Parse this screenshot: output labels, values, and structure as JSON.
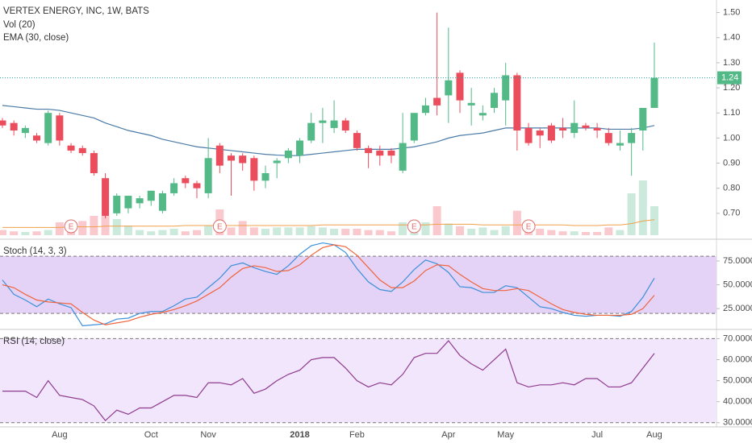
{
  "chart_data": [
    {
      "type": "candlestick",
      "title": "VERTEX ENERGY, INC, 1W, BATS",
      "up_color": "#53b987",
      "down_color": "#eb4d5c",
      "price_line_color": "#26a69a",
      "categories": [
        null,
        null,
        null,
        null,
        null,
        "Aug",
        null,
        null,
        null,
        null,
        null,
        null,
        null,
        "Oct",
        null,
        null,
        null,
        null,
        "Nov",
        null,
        null,
        null,
        null,
        null,
        null,
        null,
        "2018",
        null,
        null,
        null,
        null,
        "Feb",
        null,
        null,
        null,
        null,
        null,
        null,
        null,
        "Apr",
        null,
        null,
        null,
        null,
        "May",
        null,
        null,
        null,
        null,
        null,
        null,
        null,
        "Jul",
        null,
        null,
        null,
        null,
        "Aug"
      ],
      "open": [
        1.07,
        1.06,
        1.02,
        1.01,
        0.98,
        1.09,
        0.97,
        0.96,
        0.94,
        0.84,
        0.7,
        0.72,
        0.74,
        0.75,
        0.71,
        0.78,
        0.84,
        0.82,
        0.78,
        0.97,
        0.93,
        0.93,
        0.92,
        0.83,
        0.9,
        0.92,
        0.93,
        0.99,
        1.06,
        1.04,
        1.07,
        1.02,
        0.96,
        0.95,
        0.95,
        0.87,
        0.99,
        1.1,
        1.16,
        1.17,
        1.26,
        1.13,
        1.09,
        1.12,
        1.15,
        1.25,
        1.04,
        1.03,
        1.05,
        1.04,
        1.02,
        1.05,
        1.04,
        1.02,
        0.97,
        0.98,
        1.03,
        1.12
      ],
      "high": [
        1.08,
        1.07,
        1.05,
        1.02,
        1.11,
        1.1,
        0.98,
        0.97,
        0.95,
        0.86,
        0.78,
        0.77,
        0.77,
        0.79,
        0.79,
        0.84,
        0.85,
        0.83,
        1.0,
        0.98,
        0.94,
        0.94,
        0.93,
        0.89,
        0.92,
        0.96,
        1.0,
        1.1,
        1.12,
        1.15,
        1.08,
        1.03,
        0.97,
        0.97,
        0.96,
        1.1,
        1.1,
        1.16,
        1.5,
        1.44,
        1.27,
        1.2,
        1.13,
        1.2,
        1.3,
        1.26,
        1.06,
        1.04,
        1.06,
        1.08,
        1.15,
        1.06,
        1.06,
        1.04,
        1.03,
        1.04,
        1.12,
        1.38
      ],
      "low": [
        1.04,
        1.01,
        1.0,
        0.98,
        0.97,
        0.97,
        0.94,
        0.93,
        0.85,
        0.68,
        0.69,
        0.7,
        0.72,
        0.73,
        0.7,
        0.77,
        0.8,
        0.76,
        0.76,
        0.86,
        0.77,
        0.87,
        0.79,
        0.8,
        0.84,
        0.9,
        0.9,
        0.98,
        0.98,
        1.02,
        1.02,
        0.95,
        0.88,
        0.89,
        0.9,
        0.86,
        0.98,
        1.09,
        1.09,
        1.06,
        1.1,
        1.05,
        1.07,
        1.1,
        1.05,
        0.95,
        0.97,
        0.96,
        0.98,
        1.0,
        1.0,
        1.03,
        1.0,
        0.97,
        0.95,
        0.85,
        0.95,
        1.12
      ],
      "close": [
        1.05,
        1.03,
        1.04,
        0.99,
        1.1,
        0.99,
        0.95,
        0.94,
        0.86,
        0.69,
        0.77,
        0.77,
        0.76,
        0.79,
        0.78,
        0.82,
        0.82,
        0.8,
        0.92,
        0.89,
        0.91,
        0.9,
        0.83,
        0.86,
        0.91,
        0.95,
        0.99,
        1.06,
        1.07,
        1.07,
        1.03,
        0.96,
        0.94,
        0.93,
        0.93,
        0.98,
        1.1,
        1.13,
        1.13,
        1.23,
        1.15,
        1.14,
        1.1,
        1.18,
        1.25,
        1.03,
        0.98,
        1.01,
        0.99,
        1.03,
        1.06,
        1.04,
        1.03,
        0.98,
        0.98,
        1.02,
        1.12,
        1.24
      ],
      "series": [
        {
          "name": "EMA (30, close)",
          "color": "#4a7ba8",
          "values": [
            1.13,
            1.125,
            1.12,
            1.115,
            1.115,
            1.11,
            1.1,
            1.09,
            1.08,
            1.06,
            1.045,
            1.03,
            1.02,
            1.01,
            0.995,
            0.985,
            0.975,
            0.965,
            0.96,
            0.955,
            0.95,
            0.945,
            0.94,
            0.935,
            0.932,
            0.93,
            0.93,
            0.935,
            0.94,
            0.945,
            0.95,
            0.955,
            0.955,
            0.955,
            0.955,
            0.96,
            0.965,
            0.975,
            0.985,
            1.0,
            1.01,
            1.015,
            1.02,
            1.03,
            1.04,
            1.04,
            1.04,
            1.04,
            1.04,
            1.04,
            1.04,
            1.04,
            1.04,
            1.035,
            1.035,
            1.035,
            1.04,
            1.05
          ]
        }
      ],
      "volume": {
        "name": "Vol (20)",
        "lim": [
          0,
          100
        ],
        "ma_color": "#f0a04b",
        "values": [
          8,
          6,
          5,
          6,
          8,
          20,
          18,
          22,
          30,
          30,
          25,
          15,
          8,
          6,
          8,
          10,
          6,
          8,
          15,
          40,
          12,
          22,
          12,
          10,
          12,
          12,
          12,
          14,
          12,
          10,
          10,
          10,
          8,
          8,
          6,
          20,
          14,
          20,
          45,
          18,
          14,
          10,
          12,
          8,
          14,
          38,
          12,
          10,
          8,
          6,
          6,
          5,
          5,
          12,
          8,
          65,
          85,
          45
        ],
        "ma": [
          12,
          12,
          12,
          12,
          12,
          12,
          13,
          13,
          13,
          14,
          14,
          14,
          14,
          14,
          14,
          14,
          15,
          15,
          15,
          15,
          15,
          15,
          15,
          15,
          15,
          15,
          15,
          15,
          16,
          16,
          16,
          16,
          16,
          16,
          16,
          16,
          16,
          16,
          17,
          17,
          17,
          17,
          16,
          16,
          16,
          16,
          16,
          16,
          16,
          16,
          15,
          15,
          15,
          16,
          16,
          18,
          22,
          24
        ]
      },
      "events": [
        null,
        null,
        null,
        null,
        null,
        null,
        "E",
        null,
        null,
        null,
        null,
        null,
        null,
        null,
        null,
        null,
        null,
        null,
        null,
        "E",
        null,
        null,
        null,
        null,
        null,
        null,
        null,
        null,
        null,
        null,
        null,
        null,
        null,
        null,
        null,
        null,
        "E",
        null,
        null,
        null,
        null,
        null,
        null,
        null,
        null,
        null,
        "E",
        null,
        null,
        null,
        null,
        null,
        null,
        null,
        null,
        null,
        null,
        null
      ],
      "ylim": [
        0.6,
        1.55
      ],
      "yticks": [
        {
          "value": 0.7,
          "label": "0.70"
        },
        {
          "value": 0.8,
          "label": "0.80"
        },
        {
          "value": 0.9,
          "label": "0.90"
        },
        {
          "value": 1.0,
          "label": "1.00"
        },
        {
          "value": 1.1,
          "label": "1.10"
        },
        {
          "value": 1.2,
          "label": "1.20"
        },
        {
          "value": 1.3,
          "label": "1.30"
        },
        {
          "value": 1.4,
          "label": "1.40"
        },
        {
          "value": 1.5,
          "label": "1.50"
        }
      ]
    },
    {
      "type": "line",
      "title": "Stoch (14, 3, 3)",
      "band_color": "#e4d3f7",
      "bands": [
        20,
        80
      ],
      "series": [
        {
          "color": "#3d8fd9",
          "values": [
            55,
            40,
            34,
            27,
            35,
            30,
            26,
            7,
            8,
            9,
            14,
            15,
            20,
            22,
            22,
            28,
            35,
            37,
            47,
            57,
            70,
            73,
            68,
            64,
            61,
            70,
            82,
            91,
            94,
            92,
            84,
            67,
            53,
            45,
            43,
            53,
            66,
            76,
            72,
            63,
            48,
            47,
            42,
            42,
            49,
            47,
            37,
            27,
            25,
            21,
            18,
            17,
            18,
            18,
            17,
            22,
            37,
            57
          ]
        },
        {
          "color": "#f0643c",
          "values": [
            50,
            47,
            40,
            34,
            32,
            31,
            30,
            21,
            13,
            8,
            10,
            12,
            16,
            19,
            21,
            24,
            28,
            33,
            40,
            47,
            58,
            67,
            70,
            68,
            64,
            65,
            71,
            81,
            89,
            92,
            90,
            81,
            68,
            55,
            47,
            47,
            54,
            65,
            71,
            70,
            61,
            53,
            46,
            44,
            44,
            46,
            44,
            37,
            30,
            24,
            21,
            19,
            18,
            18,
            18,
            19,
            25,
            39
          ]
        }
      ],
      "ylim": [
        4,
        97
      ],
      "yticks": [
        {
          "value": 25,
          "label": "25.0000"
        },
        {
          "value": 50,
          "label": "50.0000"
        },
        {
          "value": 75,
          "label": "75.0000"
        }
      ]
    },
    {
      "type": "line",
      "title": "RSI (14, close)",
      "band_color": "#f1e6fb",
      "bands": [
        30,
        70
      ],
      "series": [
        {
          "color": "#8e3b8e",
          "values": [
            45,
            45,
            45,
            42,
            50,
            43,
            42,
            41,
            38,
            31,
            36,
            34,
            37,
            37,
            40,
            43,
            43,
            42,
            49,
            49,
            48,
            51,
            44,
            46,
            50,
            53,
            55,
            60,
            61,
            61,
            56,
            50,
            47,
            49,
            48,
            53,
            61,
            63,
            63,
            69,
            62,
            58,
            55,
            60,
            65,
            49,
            47,
            48,
            48,
            49,
            48,
            51,
            51,
            47,
            47,
            49,
            56,
            63
          ]
        }
      ],
      "ylim": [
        28,
        74
      ],
      "yticks": [
        {
          "value": 30,
          "label": "30.0000"
        },
        {
          "value": 40,
          "label": "40.0000"
        },
        {
          "value": 50,
          "label": "50.0000"
        },
        {
          "value": 60,
          "label": "60.0000"
        },
        {
          "value": 70,
          "label": "70.0000"
        }
      ]
    }
  ]
}
